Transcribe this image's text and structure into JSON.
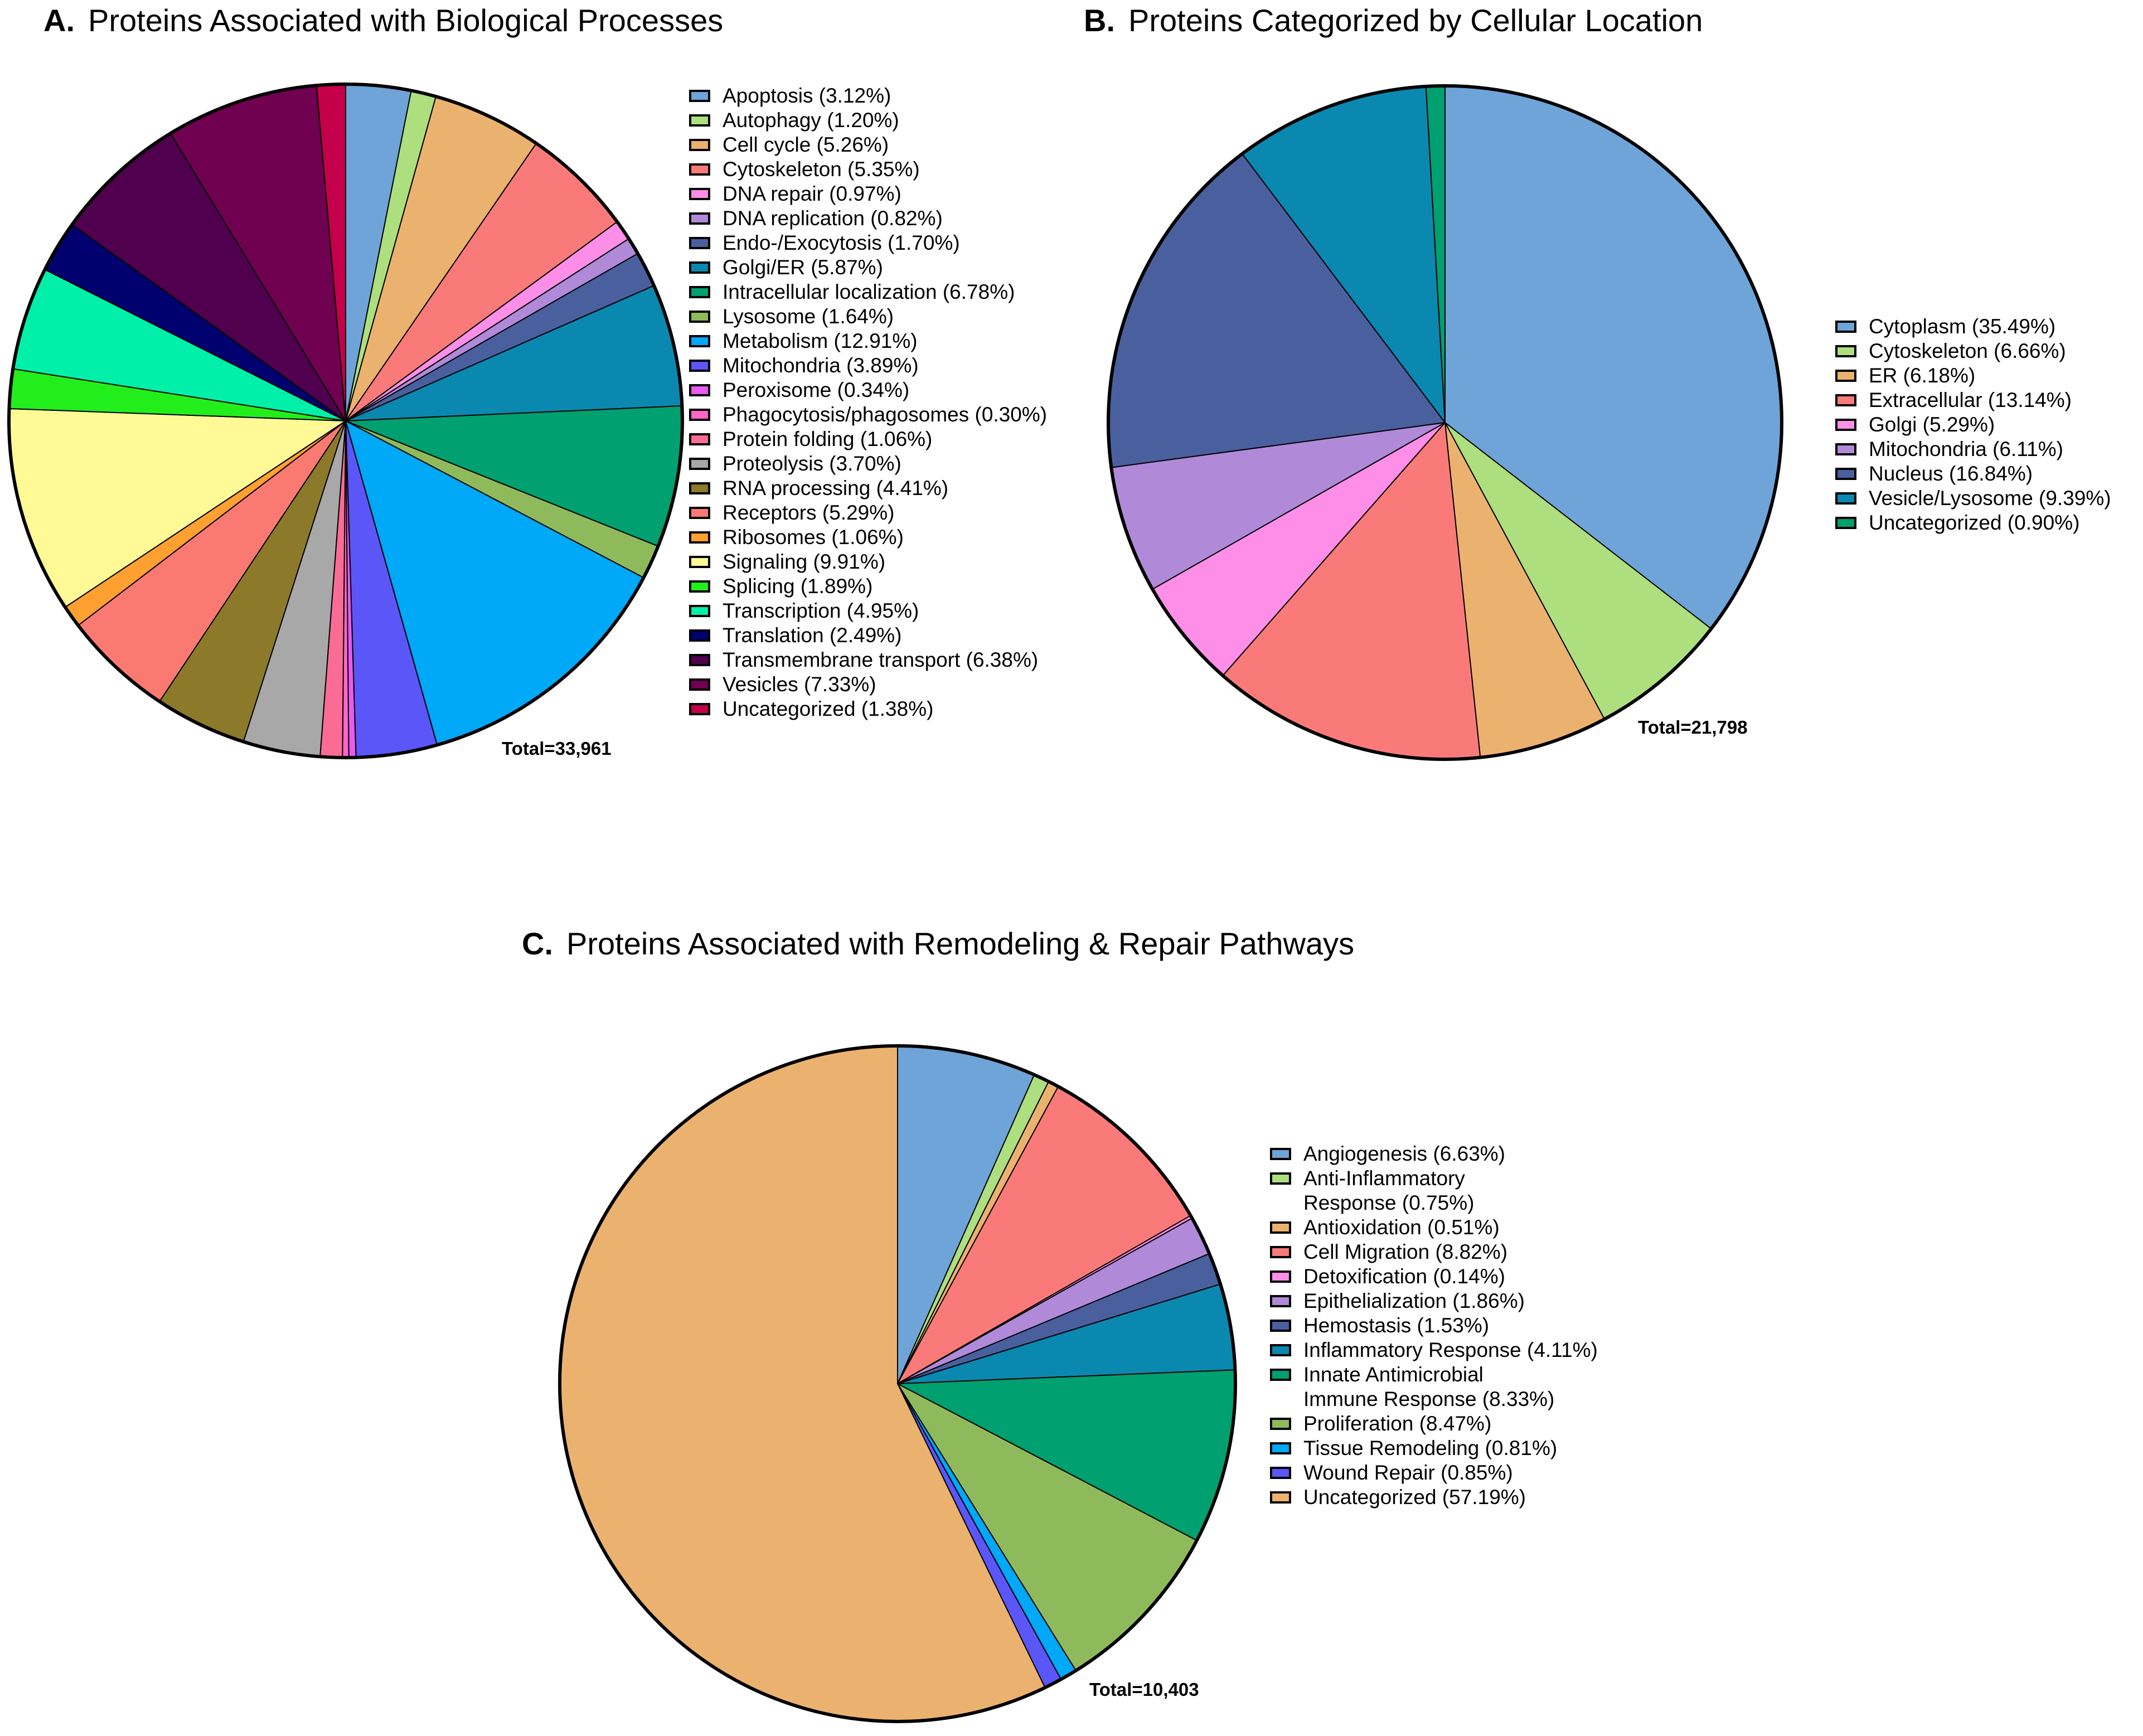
{
  "chart_data": [
    {
      "type": "pie",
      "panel": "A.",
      "title": "Proteins Associated with Biological Processes",
      "total_label": "Total=33,961",
      "slices": [
        {
          "label": "Apoptosis (3.12%)",
          "value": 3.12,
          "color": "#6ea4d8"
        },
        {
          "label": "Autophagy (1.20%)",
          "value": 1.2,
          "color": "#aedf7e"
        },
        {
          "label": "Cell cycle (5.26%)",
          "value": 5.26,
          "color": "#ebb26f"
        },
        {
          "label": "Cytoskeleton (5.35%)",
          "value": 5.35,
          "color": "#fa7a7a"
        },
        {
          "label": "DNA repair (0.97%)",
          "value": 0.97,
          "color": "#ff8ee8"
        },
        {
          "label": "DNA replication (0.82%)",
          "value": 0.82,
          "color": "#b08ad8"
        },
        {
          "label": "Endo-/Exocytosis (1.70%)",
          "value": 1.7,
          "color": "#4a5f9e"
        },
        {
          "label": "Golgi/ER (5.87%)",
          "value": 5.87,
          "color": "#0a88b0"
        },
        {
          "label": "Intracellular localization (6.78%)",
          "value": 6.78,
          "color": "#00a070"
        },
        {
          "label": "Lysosome (1.64%)",
          "value": 1.64,
          "color": "#8fba5c"
        },
        {
          "label": "Metabolism (12.91%)",
          "value": 12.91,
          "color": "#00a8f8"
        },
        {
          "label": "Mitochondria (3.89%)",
          "value": 3.89,
          "color": "#5a56f8"
        },
        {
          "label": "Peroxisome (0.34%)",
          "value": 0.34,
          "color": "#e85af0"
        },
        {
          "label": "Phagocytosis/phagosomes (0.30%)",
          "value": 0.3,
          "color": "#ff66c8"
        },
        {
          "label": "Protein folding (1.06%)",
          "value": 1.06,
          "color": "#fa6c96"
        },
        {
          "label": "Proteolysis (3.70%)",
          "value": 3.7,
          "color": "#a8a8a8"
        },
        {
          "label": "RNA processing (4.41%)",
          "value": 4.41,
          "color": "#8c7a2a"
        },
        {
          "label": "Receptors (5.29%)",
          "value": 5.29,
          "color": "#fa7a72"
        },
        {
          "label": "Ribosomes (1.06%)",
          "value": 1.06,
          "color": "#ffa030"
        },
        {
          "label": "Signaling (9.91%)",
          "value": 9.91,
          "color": "#fffa96"
        },
        {
          "label": "Splicing (1.89%)",
          "value": 1.89,
          "color": "#22ee1c"
        },
        {
          "label": "Transcription (4.95%)",
          "value": 4.95,
          "color": "#00f0aa"
        },
        {
          "label": "Translation (2.49%)",
          "value": 2.49,
          "color": "#00006e"
        },
        {
          "label": "Transmembrane transport (6.38%)",
          "value": 6.38,
          "color": "#50004e"
        },
        {
          "label": "Vesicles (7.33%)",
          "value": 7.33,
          "color": "#700050"
        },
        {
          "label": "Uncategorized (1.38%)",
          "value": 1.38,
          "color": "#c4004a"
        }
      ]
    },
    {
      "type": "pie",
      "panel": "B.",
      "title": "Proteins Categorized by Cellular Location",
      "total_label": "Total=21,798",
      "slices": [
        {
          "label": "Cytoplasm (35.49%)",
          "value": 35.49,
          "color": "#6ea4d8"
        },
        {
          "label": "Cytoskeleton (6.66%)",
          "value": 6.66,
          "color": "#aedf7e"
        },
        {
          "label": "ER (6.18%)",
          "value": 6.18,
          "color": "#ebb26f"
        },
        {
          "label": "Extracellular (13.14%)",
          "value": 13.14,
          "color": "#fa7a7a"
        },
        {
          "label": "Golgi (5.29%)",
          "value": 5.29,
          "color": "#ff8ee8"
        },
        {
          "label": "Mitochondria (6.11%)",
          "value": 6.11,
          "color": "#b08ad8"
        },
        {
          "label": "Nucleus (16.84%)",
          "value": 16.84,
          "color": "#4a5f9e"
        },
        {
          "label": "Vesicle/Lysosome (9.39%)",
          "value": 9.39,
          "color": "#0a88b0"
        },
        {
          "label": "Uncategorized (0.90%)",
          "value": 0.9,
          "color": "#00a070"
        }
      ]
    },
    {
      "type": "pie",
      "panel": "C.",
      "title": "Proteins Associated with Remodeling & Repair Pathways",
      "total_label": "Total=10,403",
      "slices": [
        {
          "label": "Angiogenesis (6.63%)",
          "value": 6.63,
          "color": "#6ea4d8"
        },
        {
          "label": "Anti-Inflammatory\nResponse (0.75%)",
          "value": 0.75,
          "color": "#aedf7e"
        },
        {
          "label": "Antioxidation (0.51%)",
          "value": 0.51,
          "color": "#ebb26f"
        },
        {
          "label": "Cell Migration (8.82%)",
          "value": 8.82,
          "color": "#fa7a7a"
        },
        {
          "label": "Detoxification (0.14%)",
          "value": 0.14,
          "color": "#ff8ee8"
        },
        {
          "label": "Epithelialization (1.86%)",
          "value": 1.86,
          "color": "#b08ad8"
        },
        {
          "label": "Hemostasis (1.53%)",
          "value": 1.53,
          "color": "#4a5f9e"
        },
        {
          "label": "Inflammatory Response (4.11%)",
          "value": 4.11,
          "color": "#0a88b0"
        },
        {
          "label": "Innate Antimicrobial\nImmune Response (8.33%)",
          "value": 8.33,
          "color": "#00a070"
        },
        {
          "label": "Proliferation (8.47%)",
          "value": 8.47,
          "color": "#8fba5c"
        },
        {
          "label": "Tissue Remodeling (0.81%)",
          "value": 0.81,
          "color": "#00a8f8"
        },
        {
          "label": "Wound Repair (0.85%)",
          "value": 0.85,
          "color": "#5a56f8"
        },
        {
          "label": "Uncategorized (57.19%)",
          "value": 57.19,
          "color": "#ebb26f"
        }
      ]
    }
  ]
}
